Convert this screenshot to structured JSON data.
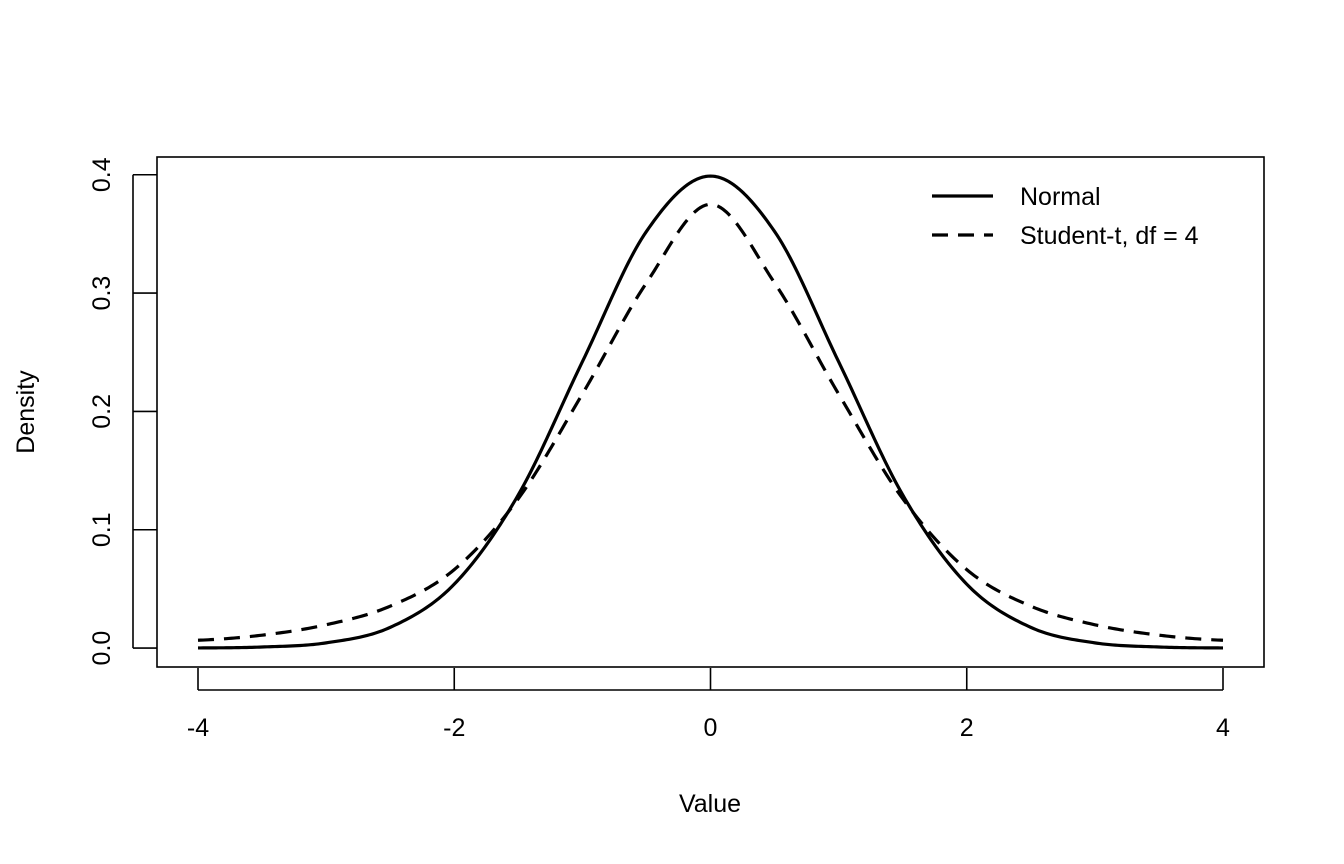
{
  "chart_data": {
    "type": "line",
    "title": "",
    "xlabel": "Value",
    "ylabel": "Density",
    "xlim": [
      -4.32,
      4.32
    ],
    "ylim": [
      -0.016,
      0.415
    ],
    "x_ticks": [
      -4,
      -2,
      0,
      2,
      4
    ],
    "x_tick_labels": [
      "-4",
      "-2",
      "0",
      "2",
      "4"
    ],
    "y_ticks": [
      0.0,
      0.1,
      0.2,
      0.3,
      0.4
    ],
    "y_tick_labels": [
      "0.0",
      "0.1",
      "0.2",
      "0.3",
      "0.4"
    ],
    "grid": false,
    "legend_position": "top-right",
    "x": [
      -4,
      -3.5,
      -3,
      -2.5,
      -2,
      -1.5,
      -1,
      -0.5,
      0,
      0.5,
      1,
      1.5,
      2,
      2.5,
      3,
      3.5,
      4
    ],
    "series": [
      {
        "name": "Normal",
        "line_style": "solid",
        "color": "#000000",
        "values": [
          0.0001,
          0.0009,
          0.0044,
          0.0175,
          0.054,
          0.1295,
          0.242,
          0.3521,
          0.3989,
          0.3521,
          0.242,
          0.1295,
          0.054,
          0.0175,
          0.0044,
          0.0009,
          0.0001
        ]
      },
      {
        "name": "Student-t, df = 4",
        "line_style": "dashed",
        "color": "#000000",
        "values": [
          0.0066,
          0.0109,
          0.0197,
          0.0354,
          0.0663,
          0.1263,
          0.2147,
          0.3086,
          0.375,
          0.3086,
          0.2147,
          0.1263,
          0.0663,
          0.0354,
          0.0197,
          0.0109,
          0.0066
        ]
      }
    ]
  }
}
